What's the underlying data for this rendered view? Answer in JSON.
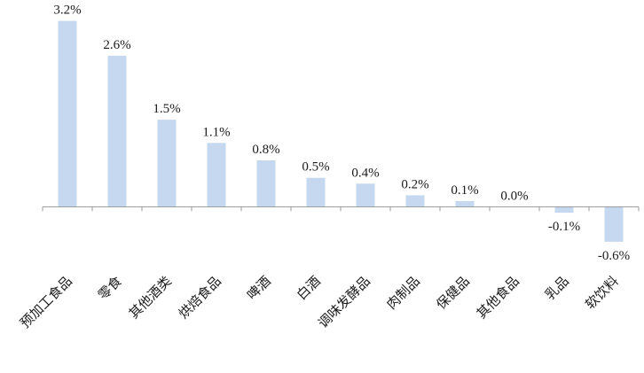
{
  "chart_data": {
    "type": "bar",
    "title": "",
    "xlabel": "",
    "ylabel": "",
    "categories": [
      "预加工食品",
      "零食",
      "其他酒类",
      "烘焙食品",
      "啤酒",
      "白酒",
      "调味发酵品",
      "肉制品",
      "保健品",
      "其他食品",
      "乳品",
      "软饮料"
    ],
    "values": [
      3.2,
      2.6,
      1.5,
      1.1,
      0.8,
      0.5,
      0.4,
      0.2,
      0.1,
      0.0,
      -0.1,
      -0.6
    ],
    "value_labels": [
      "3.2%",
      "2.6%",
      "1.5%",
      "1.1%",
      "0.8%",
      "0.5%",
      "0.4%",
      "0.2%",
      "0.1%",
      "0.0%",
      "-0.1%",
      "-0.6%"
    ],
    "unit": "%",
    "grid": false,
    "legend": "none",
    "bar_color": "#c6d8f0",
    "axis_color": "#9e9e9e"
  }
}
